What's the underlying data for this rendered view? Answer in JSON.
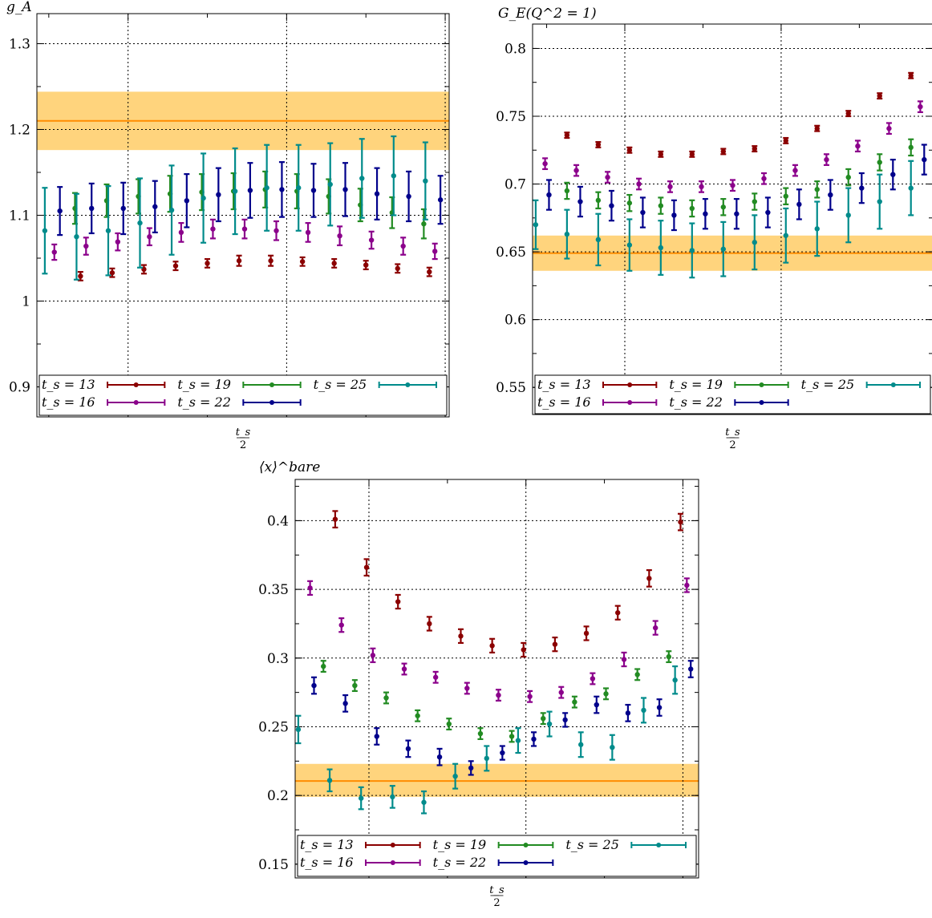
{
  "colors": {
    "ts13": "#8b0000",
    "ts16": "#8b008b",
    "ts19": "#228b22",
    "ts22": "#00008b",
    "ts25": "#008b8b",
    "band": "#ffcc66",
    "bandLine": "#ff8c00"
  },
  "legend_labels": [
    "t_s = 13",
    "t_s = 16",
    "t_s = 19",
    "t_s = 22",
    "t_s = 25"
  ],
  "chart_data": [
    {
      "type": "scatter",
      "ylabel": "g_A",
      "xlabel": "t_s/2",
      "ylim": [
        0.865,
        1.335
      ],
      "yticks": [
        0.9,
        1,
        1.1,
        1.2,
        1.3
      ],
      "ytick_labels": [
        "0.9",
        "1",
        "1.1",
        "1.2",
        "1.3"
      ],
      "grid": true,
      "legend": "bottom",
      "band": {
        "center": 1.21,
        "low": 1.176,
        "high": 1.244
      },
      "series": [
        {
          "name": "t_s = 13",
          "x": [
            2.25,
            4.25,
            6.25,
            8.25,
            10.25,
            12.25,
            14.25,
            16.25,
            18.25,
            20.25,
            22.25,
            24.25
          ],
          "y": [
            1.029,
            1.033,
            1.037,
            1.041,
            1.044,
            1.047,
            1.047,
            1.046,
            1.044,
            1.042,
            1.038,
            1.034
          ],
          "err": [
            0.005,
            0.005,
            0.005,
            0.005,
            0.005,
            0.006,
            0.006,
            0.005,
            0.005,
            0.005,
            0.005,
            0.005
          ]
        },
        {
          "name": "t_s = 16",
          "x": [
            0.6,
            2.6,
            4.6,
            6.6,
            8.6,
            10.6,
            12.6,
            14.6,
            16.6,
            18.6,
            20.6,
            22.6,
            24.6
          ],
          "y": [
            1.057,
            1.064,
            1.069,
            1.075,
            1.08,
            1.084,
            1.084,
            1.082,
            1.08,
            1.076,
            1.071,
            1.064,
            1.058
          ],
          "err": [
            0.009,
            0.01,
            0.01,
            0.01,
            0.011,
            0.011,
            0.011,
            0.011,
            0.011,
            0.011,
            0.01,
            0.01,
            0.009
          ]
        },
        {
          "name": "t_s = 19",
          "x": [
            1.9,
            3.9,
            5.9,
            7.9,
            9.9,
            11.9,
            13.9,
            15.9,
            17.9,
            19.9,
            21.9,
            23.9
          ],
          "y": [
            1.108,
            1.117,
            1.122,
            1.125,
            1.127,
            1.128,
            1.13,
            1.128,
            1.122,
            1.112,
            1.103,
            1.09
          ],
          "err": [
            0.018,
            0.019,
            0.02,
            0.021,
            0.021,
            0.021,
            0.021,
            0.02,
            0.02,
            0.019,
            0.018,
            0.017
          ]
        },
        {
          "name": "t_s = 22",
          "x": [
            0.95,
            2.95,
            4.95,
            6.95,
            8.95,
            10.95,
            12.95,
            14.95,
            16.95,
            18.95,
            20.95,
            22.95,
            24.95
          ],
          "y": [
            1.105,
            1.108,
            1.108,
            1.11,
            1.117,
            1.124,
            1.129,
            1.13,
            1.129,
            1.13,
            1.125,
            1.122,
            1.118
          ],
          "err": [
            0.028,
            0.029,
            0.03,
            0.03,
            0.031,
            0.031,
            0.032,
            0.032,
            0.031,
            0.031,
            0.03,
            0.029,
            0.028
          ]
        },
        {
          "name": "t_s = 25",
          "x": [
            0,
            2,
            4,
            6,
            8,
            10,
            12,
            14,
            16,
            18,
            20,
            22,
            24
          ],
          "y": [
            1.082,
            1.075,
            1.082,
            1.091,
            1.106,
            1.12,
            1.128,
            1.132,
            1.132,
            1.136,
            1.143,
            1.146,
            1.14
          ],
          "err": [
            0.05,
            0.05,
            0.052,
            0.052,
            0.052,
            0.052,
            0.05,
            0.05,
            0.05,
            0.048,
            0.046,
            0.046,
            0.045
          ]
        }
      ]
    },
    {
      "type": "scatter",
      "ylabel": "G_E(Q^2 = 1)",
      "xlabel": "t_s/2",
      "ylim": [
        0.53,
        0.818
      ],
      "yticks": [
        0.55,
        0.6,
        0.65,
        0.7,
        0.75,
        0.8
      ],
      "ytick_labels": [
        "0.55",
        "0.6",
        "0.65",
        "0.7",
        "0.75",
        "0.8"
      ],
      "grid": true,
      "legend": "bottom",
      "band": {
        "center": 0.649,
        "low": 0.636,
        "high": 0.662
      },
      "series": [
        {
          "name": "t_s = 13",
          "x": [
            1.4,
            3.4,
            5.4,
            7.4,
            9.4,
            11.4,
            13.4,
            15.4,
            17.4,
            19.4,
            21.4,
            23.4
          ],
          "y": [
            0.736,
            0.729,
            0.725,
            0.722,
            0.722,
            0.724,
            0.726,
            0.732,
            0.741,
            0.752,
            0.765,
            0.78
          ],
          "err": [
            0.002,
            0.002,
            0.002,
            0.002,
            0.002,
            0.002,
            0.002,
            0.002,
            0.002,
            0.002,
            0.002,
            0.002
          ]
        },
        {
          "name": "t_s = 16",
          "x": [
            0.0,
            2.0,
            4.0,
            6.0,
            8.0,
            10.0,
            12.0,
            14.0,
            16.0,
            18.0,
            20.0,
            22.0,
            24.0
          ],
          "y": [
            0.715,
            0.71,
            0.705,
            0.7,
            0.698,
            0.698,
            0.699,
            0.704,
            0.71,
            0.718,
            0.728,
            0.741,
            0.757
          ],
          "err": [
            0.004,
            0.004,
            0.004,
            0.004,
            0.004,
            0.004,
            0.004,
            0.004,
            0.004,
            0.004,
            0.004,
            0.004,
            0.004
          ]
        },
        {
          "name": "t_s = 19",
          "x": [
            1.4,
            3.4,
            5.4,
            7.4,
            9.4,
            11.4,
            13.4,
            15.4,
            17.4,
            19.4,
            21.4,
            23.4
          ],
          "y": [
            0.695,
            0.688,
            0.686,
            0.684,
            0.682,
            0.683,
            0.687,
            0.691,
            0.696,
            0.705,
            0.716,
            0.727
          ],
          "err": [
            0.006,
            0.006,
            0.006,
            0.006,
            0.006,
            0.006,
            0.006,
            0.006,
            0.006,
            0.006,
            0.006,
            0.006
          ]
        },
        {
          "name": "t_s = 22",
          "x": [
            0.25,
            2.25,
            4.25,
            6.25,
            8.25,
            10.25,
            12.25,
            14.25,
            16.25,
            18.25,
            20.25,
            22.25,
            24.25
          ],
          "y": [
            0.692,
            0.687,
            0.684,
            0.679,
            0.677,
            0.678,
            0.678,
            0.679,
            0.685,
            0.692,
            0.697,
            0.707,
            0.718
          ],
          "err": [
            0.011,
            0.011,
            0.011,
            0.011,
            0.011,
            0.011,
            0.011,
            0.011,
            0.011,
            0.011,
            0.011,
            0.011,
            0.011
          ]
        },
        {
          "name": "t_s = 25",
          "x": [
            -0.6,
            1.4,
            3.4,
            5.4,
            7.4,
            9.4,
            11.4,
            13.4,
            15.4,
            17.4,
            19.4,
            21.4,
            23.4
          ],
          "y": [
            0.67,
            0.663,
            0.659,
            0.655,
            0.653,
            0.651,
            0.652,
            0.657,
            0.662,
            0.667,
            0.677,
            0.687,
            0.697
          ],
          "err": [
            0.018,
            0.018,
            0.019,
            0.019,
            0.02,
            0.02,
            0.02,
            0.02,
            0.02,
            0.02,
            0.02,
            0.02,
            0.02
          ]
        }
      ]
    },
    {
      "type": "scatter",
      "ylabel": "⟨x⟩^bare",
      "xlabel": "t_s/2",
      "ylim": [
        0.14,
        0.43
      ],
      "yticks": [
        0.15,
        0.2,
        0.25,
        0.3,
        0.35,
        0.4
      ],
      "ytick_labels": [
        "0.15",
        "0.2",
        "0.25",
        "0.3",
        "0.35",
        "0.4"
      ],
      "grid": true,
      "legend": "bottom",
      "band": {
        "center": 0.2105,
        "low": 0.199,
        "high": 0.223
      },
      "series": [
        {
          "name": "t_s = 13",
          "x": [
            1.85,
            3.85,
            5.85,
            7.85,
            9.85,
            11.85,
            13.85,
            15.85,
            17.85,
            19.85,
            21.85,
            23.85
          ],
          "y": [
            0.401,
            0.366,
            0.341,
            0.325,
            0.316,
            0.309,
            0.306,
            0.31,
            0.318,
            0.333,
            0.358,
            0.399
          ],
          "err": [
            0.006,
            0.006,
            0.005,
            0.005,
            0.005,
            0.005,
            0.005,
            0.005,
            0.005,
            0.005,
            0.006,
            0.006
          ]
        },
        {
          "name": "t_s = 16",
          "x": [
            0.25,
            2.25,
            4.25,
            6.25,
            8.25,
            10.25,
            12.25,
            14.25,
            16.25,
            18.25,
            20.25,
            22.25,
            24.25
          ],
          "y": [
            0.351,
            0.324,
            0.302,
            0.292,
            0.286,
            0.278,
            0.273,
            0.272,
            0.275,
            0.285,
            0.299,
            0.322,
            0.353
          ],
          "err": [
            0.005,
            0.005,
            0.005,
            0.004,
            0.004,
            0.004,
            0.004,
            0.004,
            0.004,
            0.004,
            0.005,
            0.005,
            0.005
          ]
        },
        {
          "name": "t_s = 19",
          "x": [
            1.1,
            3.1,
            5.1,
            7.1,
            9.1,
            11.1,
            13.1,
            15.1,
            17.1,
            19.1,
            21.1,
            23.1
          ],
          "y": [
            0.294,
            0.28,
            0.271,
            0.258,
            0.252,
            0.245,
            0.243,
            0.256,
            0.268,
            0.274,
            0.288,
            0.301
          ],
          "err": [
            0.004,
            0.004,
            0.004,
            0.004,
            0.004,
            0.004,
            0.004,
            0.004,
            0.004,
            0.004,
            0.004,
            0.004
          ]
        },
        {
          "name": "t_s = 22",
          "x": [
            0.5,
            2.5,
            4.5,
            6.5,
            8.5,
            10.5,
            12.5,
            14.5,
            16.5,
            18.5,
            20.5,
            22.5,
            24.5
          ],
          "y": [
            0.28,
            0.267,
            0.243,
            0.234,
            0.228,
            0.22,
            0.231,
            0.241,
            0.255,
            0.266,
            0.26,
            0.264,
            0.292
          ],
          "err": [
            0.006,
            0.006,
            0.006,
            0.006,
            0.006,
            0.005,
            0.005,
            0.005,
            0.005,
            0.006,
            0.006,
            0.006,
            0.006
          ]
        },
        {
          "name": "t_s = 25",
          "x": [
            -0.5,
            1.5,
            3.5,
            5.5,
            7.5,
            9.5,
            11.5,
            13.5,
            15.5,
            17.5,
            19.5,
            21.5,
            23.5
          ],
          "y": [
            0.248,
            0.211,
            0.198,
            0.199,
            0.195,
            0.214,
            0.227,
            0.24,
            0.252,
            0.237,
            0.235,
            0.262,
            0.284
          ],
          "err": [
            0.01,
            0.008,
            0.008,
            0.008,
            0.008,
            0.009,
            0.009,
            0.009,
            0.009,
            0.009,
            0.009,
            0.009,
            0.01
          ]
        }
      ]
    }
  ]
}
